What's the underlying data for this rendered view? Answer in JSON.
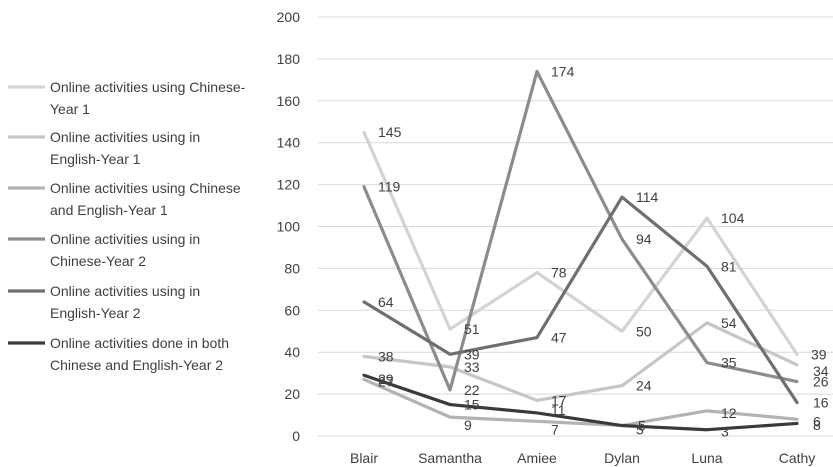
{
  "chart_data": {
    "type": "line",
    "categories": [
      "Blair",
      "Samantha",
      "Amiee",
      "Dylan",
      "Luna",
      "Cathy"
    ],
    "ylim": [
      0,
      200
    ],
    "yticks": [
      0,
      20,
      40,
      60,
      80,
      100,
      120,
      140,
      160,
      180,
      200
    ],
    "grid": true,
    "legend_position": "left",
    "series": [
      {
        "name": "Online activities using Chinese-Year 1",
        "legend_lines": [
          "Online activities using Chinese-",
          "Year 1"
        ],
        "color": "#d3d3d3",
        "values": [
          145,
          51,
          78,
          50,
          104,
          39
        ]
      },
      {
        "name": "Online activities using in English-Year 1",
        "legend_lines": [
          "Online activities using in",
          "English-Year 1"
        ],
        "color": "#c6c6c6",
        "values": [
          38,
          33,
          17,
          24,
          54,
          34
        ]
      },
      {
        "name": "Online activities using Chinese and English-Year 1",
        "legend_lines": [
          "Online activities using Chinese",
          "and English-Year 1"
        ],
        "color": "#b3b3b3",
        "values": [
          27,
          9,
          7,
          5,
          12,
          8
        ]
      },
      {
        "name": "Online activities using in Chinese-Year 2",
        "legend_lines": [
          "Online activities using in",
          "Chinese-Year 2"
        ],
        "color": "#8c8c8c",
        "values": [
          119,
          22,
          174,
          94,
          35,
          26
        ]
      },
      {
        "name": "Online activities using in English-Year 2",
        "legend_lines": [
          "Online activities using in",
          "English-Year 2"
        ],
        "color": "#6f6f6f",
        "values": [
          64,
          39,
          47,
          114,
          81,
          16
        ]
      },
      {
        "name": "Online activities done in both Chinese and English-Year 2",
        "legend_lines": [
          "Online activities done in both",
          "Chinese and English-Year 2"
        ],
        "color": "#3a3a3a",
        "values": [
          29,
          15,
          11,
          5,
          3,
          6
        ]
      }
    ]
  }
}
